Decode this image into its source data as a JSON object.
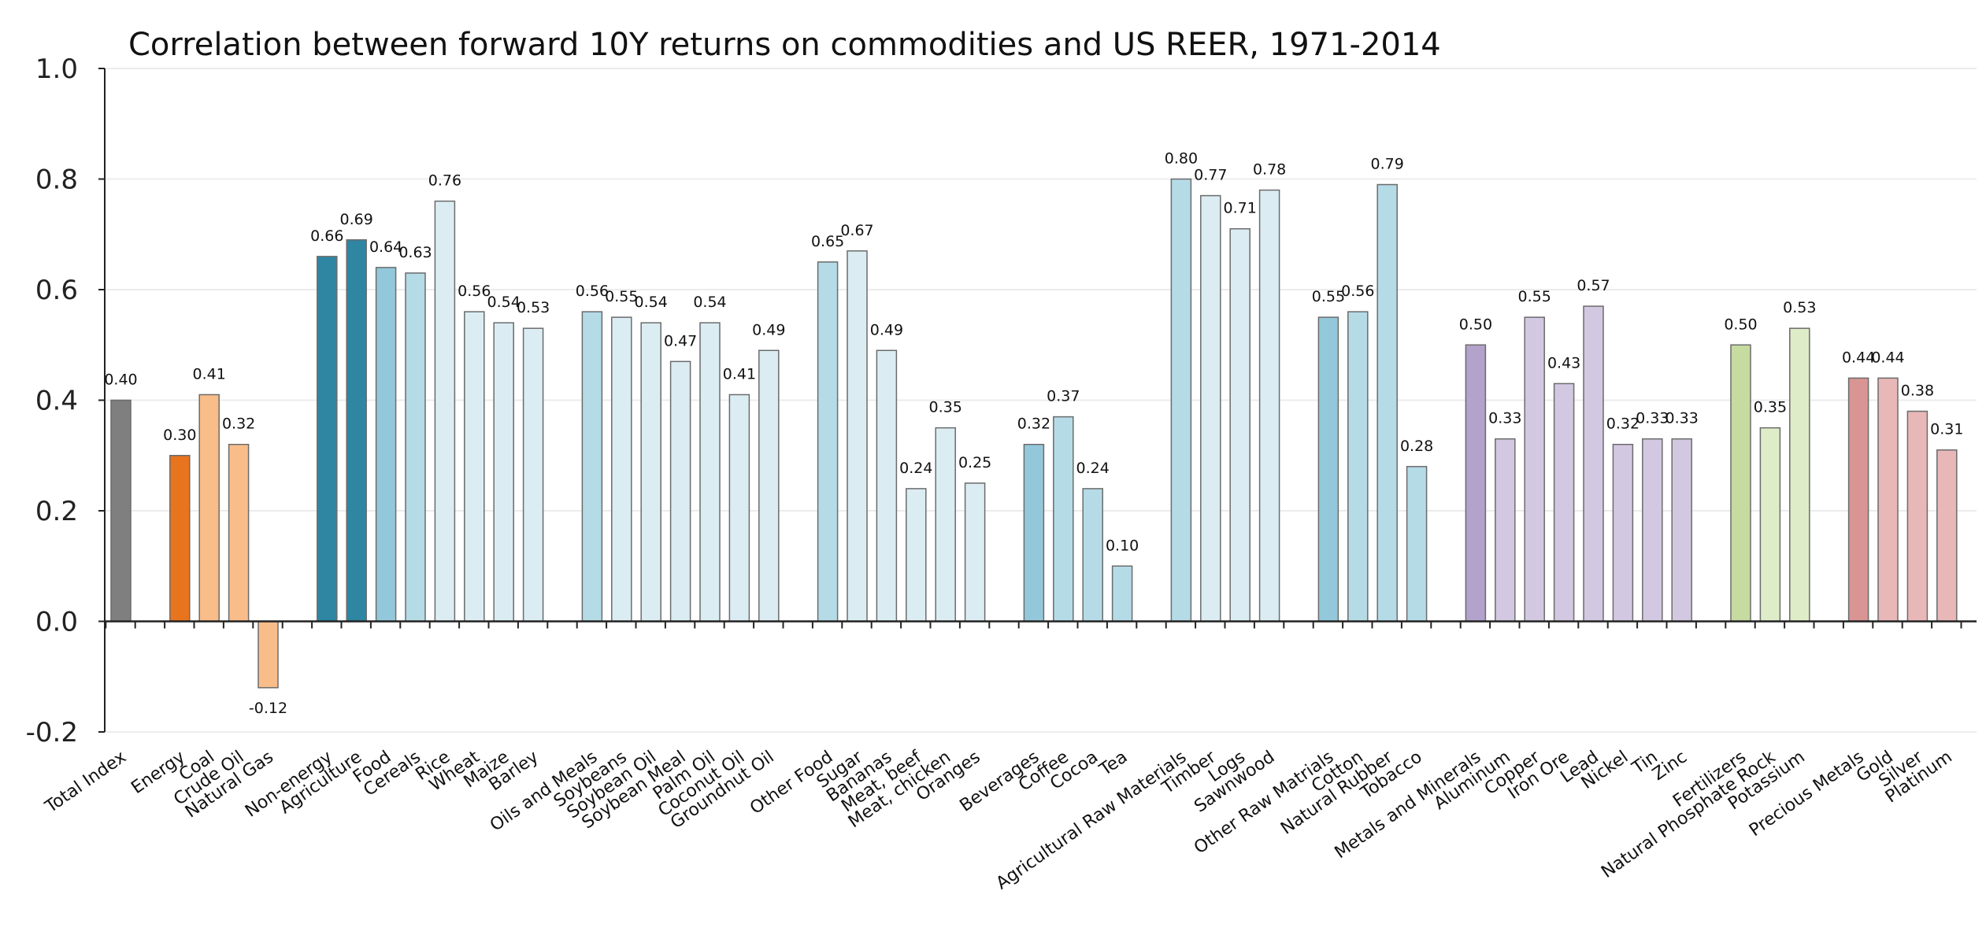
{
  "chart_data": {
    "type": "bar",
    "title": "Correlation between forward 10Y returns on commodities and US REER, 1971-2014",
    "xlabel": "",
    "ylabel": "",
    "ylim": [
      -0.2,
      1.0
    ],
    "yticks": [
      "1.0",
      "0.8",
      "0.6",
      "0.4",
      "0.2",
      "0.0",
      "-0.2"
    ],
    "grid": true,
    "legend": "none",
    "bars": [
      {
        "slot": 0,
        "label": "Total Index",
        "value": 0.4,
        "value_label": "0.40",
        "color": "#7f7f7f"
      },
      {
        "slot": 2,
        "label": "Energy",
        "value": 0.3,
        "value_label": "0.30",
        "color": "#e8741e"
      },
      {
        "slot": 3,
        "label": "Coal",
        "value": 0.41,
        "value_label": "0.41",
        "color": "#f9bd8a"
      },
      {
        "slot": 4,
        "label": "Crude Oil",
        "value": 0.32,
        "value_label": "0.32",
        "color": "#f9bd8a"
      },
      {
        "slot": 5,
        "label": "Natural Gas",
        "value": -0.12,
        "value_label": "-0.12",
        "color": "#f9bd8a"
      },
      {
        "slot": 7,
        "label": "Non-energy",
        "value": 0.66,
        "value_label": "0.66",
        "color": "#2e86a2"
      },
      {
        "slot": 8,
        "label": "Agriculture",
        "value": 0.69,
        "value_label": "0.69",
        "color": "#2e86a2"
      },
      {
        "slot": 9,
        "label": "Food",
        "value": 0.64,
        "value_label": "0.64",
        "color": "#93c8db"
      },
      {
        "slot": 10,
        "label": "Cereals",
        "value": 0.63,
        "value_label": "0.63",
        "color": "#b5dbe7"
      },
      {
        "slot": 11,
        "label": "Rice",
        "value": 0.76,
        "value_label": "0.76",
        "color": "#dbedf3"
      },
      {
        "slot": 12,
        "label": "Wheat",
        "value": 0.56,
        "value_label": "0.56",
        "color": "#dbedf3"
      },
      {
        "slot": 13,
        "label": "Maize",
        "value": 0.54,
        "value_label": "0.54",
        "color": "#dbedf3"
      },
      {
        "slot": 14,
        "label": "Barley",
        "value": 0.53,
        "value_label": "0.53",
        "color": "#dbedf3"
      },
      {
        "slot": 16,
        "label": "Oils and Meals",
        "value": 0.56,
        "value_label": "0.56",
        "color": "#b5dbe7"
      },
      {
        "slot": 17,
        "label": "Soybeans",
        "value": 0.55,
        "value_label": "0.55",
        "color": "#dbedf3"
      },
      {
        "slot": 18,
        "label": "Soybean Oil",
        "value": 0.54,
        "value_label": "0.54",
        "color": "#dbedf3"
      },
      {
        "slot": 19,
        "label": "Soybean Meal",
        "value": 0.47,
        "value_label": "0.47",
        "color": "#dbedf3"
      },
      {
        "slot": 20,
        "label": "Palm Oil",
        "value": 0.54,
        "value_label": "0.54",
        "color": "#dbedf3"
      },
      {
        "slot": 21,
        "label": "Coconut Oil",
        "value": 0.41,
        "value_label": "0.41",
        "color": "#dbedf3"
      },
      {
        "slot": 22,
        "label": "Groundnut Oil",
        "value": 0.49,
        "value_label": "0.49",
        "color": "#dbedf3"
      },
      {
        "slot": 24,
        "label": "Other Food",
        "value": 0.65,
        "value_label": "0.65",
        "color": "#b5dbe7"
      },
      {
        "slot": 25,
        "label": "Sugar",
        "value": 0.67,
        "value_label": "0.67",
        "color": "#dbedf3"
      },
      {
        "slot": 26,
        "label": "Bananas",
        "value": 0.49,
        "value_label": "0.49",
        "color": "#dbedf3"
      },
      {
        "slot": 27,
        "label": "Meat, beef",
        "value": 0.24,
        "value_label": "0.24",
        "color": "#dbedf3"
      },
      {
        "slot": 28,
        "label": "Meat, chicken",
        "value": 0.35,
        "value_label": "0.35",
        "color": "#dbedf3"
      },
      {
        "slot": 29,
        "label": "Oranges",
        "value": 0.25,
        "value_label": "0.25",
        "color": "#dbedf3"
      },
      {
        "slot": 31,
        "label": "Beverages",
        "value": 0.32,
        "value_label": "0.32",
        "color": "#93c8db"
      },
      {
        "slot": 32,
        "label": "Coffee",
        "value": 0.37,
        "value_label": "0.37",
        "color": "#b5dbe7"
      },
      {
        "slot": 33,
        "label": "Cocoa",
        "value": 0.24,
        "value_label": "0.24",
        "color": "#b5dbe7"
      },
      {
        "slot": 34,
        "label": "Tea",
        "value": 0.1,
        "value_label": "0.10",
        "color": "#b5dbe7"
      },
      {
        "slot": 36,
        "label": "Agricultural Raw Materials",
        "value": 0.8,
        "value_label": "0.80",
        "color": "#b5dbe7"
      },
      {
        "slot": 37,
        "label": "Timber",
        "value": 0.77,
        "value_label": "0.77",
        "color": "#dbedf3"
      },
      {
        "slot": 38,
        "label": "Logs",
        "value": 0.71,
        "value_label": "0.71",
        "color": "#dbedf3"
      },
      {
        "slot": 39,
        "label": "Sawnwood",
        "value": 0.78,
        "value_label": "0.78",
        "color": "#dbedf3"
      },
      {
        "slot": 41,
        "label": "Other Raw Matrials",
        "value": 0.55,
        "value_label": "0.55",
        "color": "#93c8db"
      },
      {
        "slot": 42,
        "label": "Cotton",
        "value": 0.56,
        "value_label": "0.56",
        "color": "#b5dbe7"
      },
      {
        "slot": 43,
        "label": "Natural Rubber",
        "value": 0.79,
        "value_label": "0.79",
        "color": "#b5dbe7"
      },
      {
        "slot": 44,
        "label": "Tobacco",
        "value": 0.28,
        "value_label": "0.28",
        "color": "#b5dbe7"
      },
      {
        "slot": 46,
        "label": "Metals and Minerals",
        "value": 0.5,
        "value_label": "0.50",
        "color": "#b3a2cb"
      },
      {
        "slot": 47,
        "label": "Aluminum",
        "value": 0.33,
        "value_label": "0.33",
        "color": "#d3c8e1"
      },
      {
        "slot": 48,
        "label": "Copper",
        "value": 0.55,
        "value_label": "0.55",
        "color": "#d3c8e1"
      },
      {
        "slot": 49,
        "label": "Iron Ore",
        "value": 0.43,
        "value_label": "0.43",
        "color": "#d3c8e1"
      },
      {
        "slot": 50,
        "label": "Lead",
        "value": 0.57,
        "value_label": "0.57",
        "color": "#d3c8e1"
      },
      {
        "slot": 51,
        "label": "Nickel",
        "value": 0.32,
        "value_label": "0.32",
        "color": "#d3c8e1"
      },
      {
        "slot": 52,
        "label": "Tin",
        "value": 0.33,
        "value_label": "0.33",
        "color": "#d3c8e1"
      },
      {
        "slot": 53,
        "label": "Zinc",
        "value": 0.33,
        "value_label": "0.33",
        "color": "#d3c8e1"
      },
      {
        "slot": 55,
        "label": "Fertilizers",
        "value": 0.5,
        "value_label": "0.50",
        "color": "#c5dba0"
      },
      {
        "slot": 56,
        "label": "Natural Phosphate Rock",
        "value": 0.35,
        "value_label": "0.35",
        "color": "#dfecc8"
      },
      {
        "slot": 57,
        "label": "Potassium",
        "value": 0.53,
        "value_label": "0.53",
        "color": "#dfecc8"
      },
      {
        "slot": 59,
        "label": "Precious Metals",
        "value": 0.44,
        "value_label": "0.44",
        "color": "#d99494"
      },
      {
        "slot": 60,
        "label": "Gold",
        "value": 0.44,
        "value_label": "0.44",
        "color": "#e8b7b7"
      },
      {
        "slot": 61,
        "label": "Silver",
        "value": 0.38,
        "value_label": "0.38",
        "color": "#e8b7b7"
      },
      {
        "slot": 62,
        "label": "Platinum",
        "value": 0.31,
        "value_label": "0.31",
        "color": "#e8b7b7"
      }
    ]
  }
}
